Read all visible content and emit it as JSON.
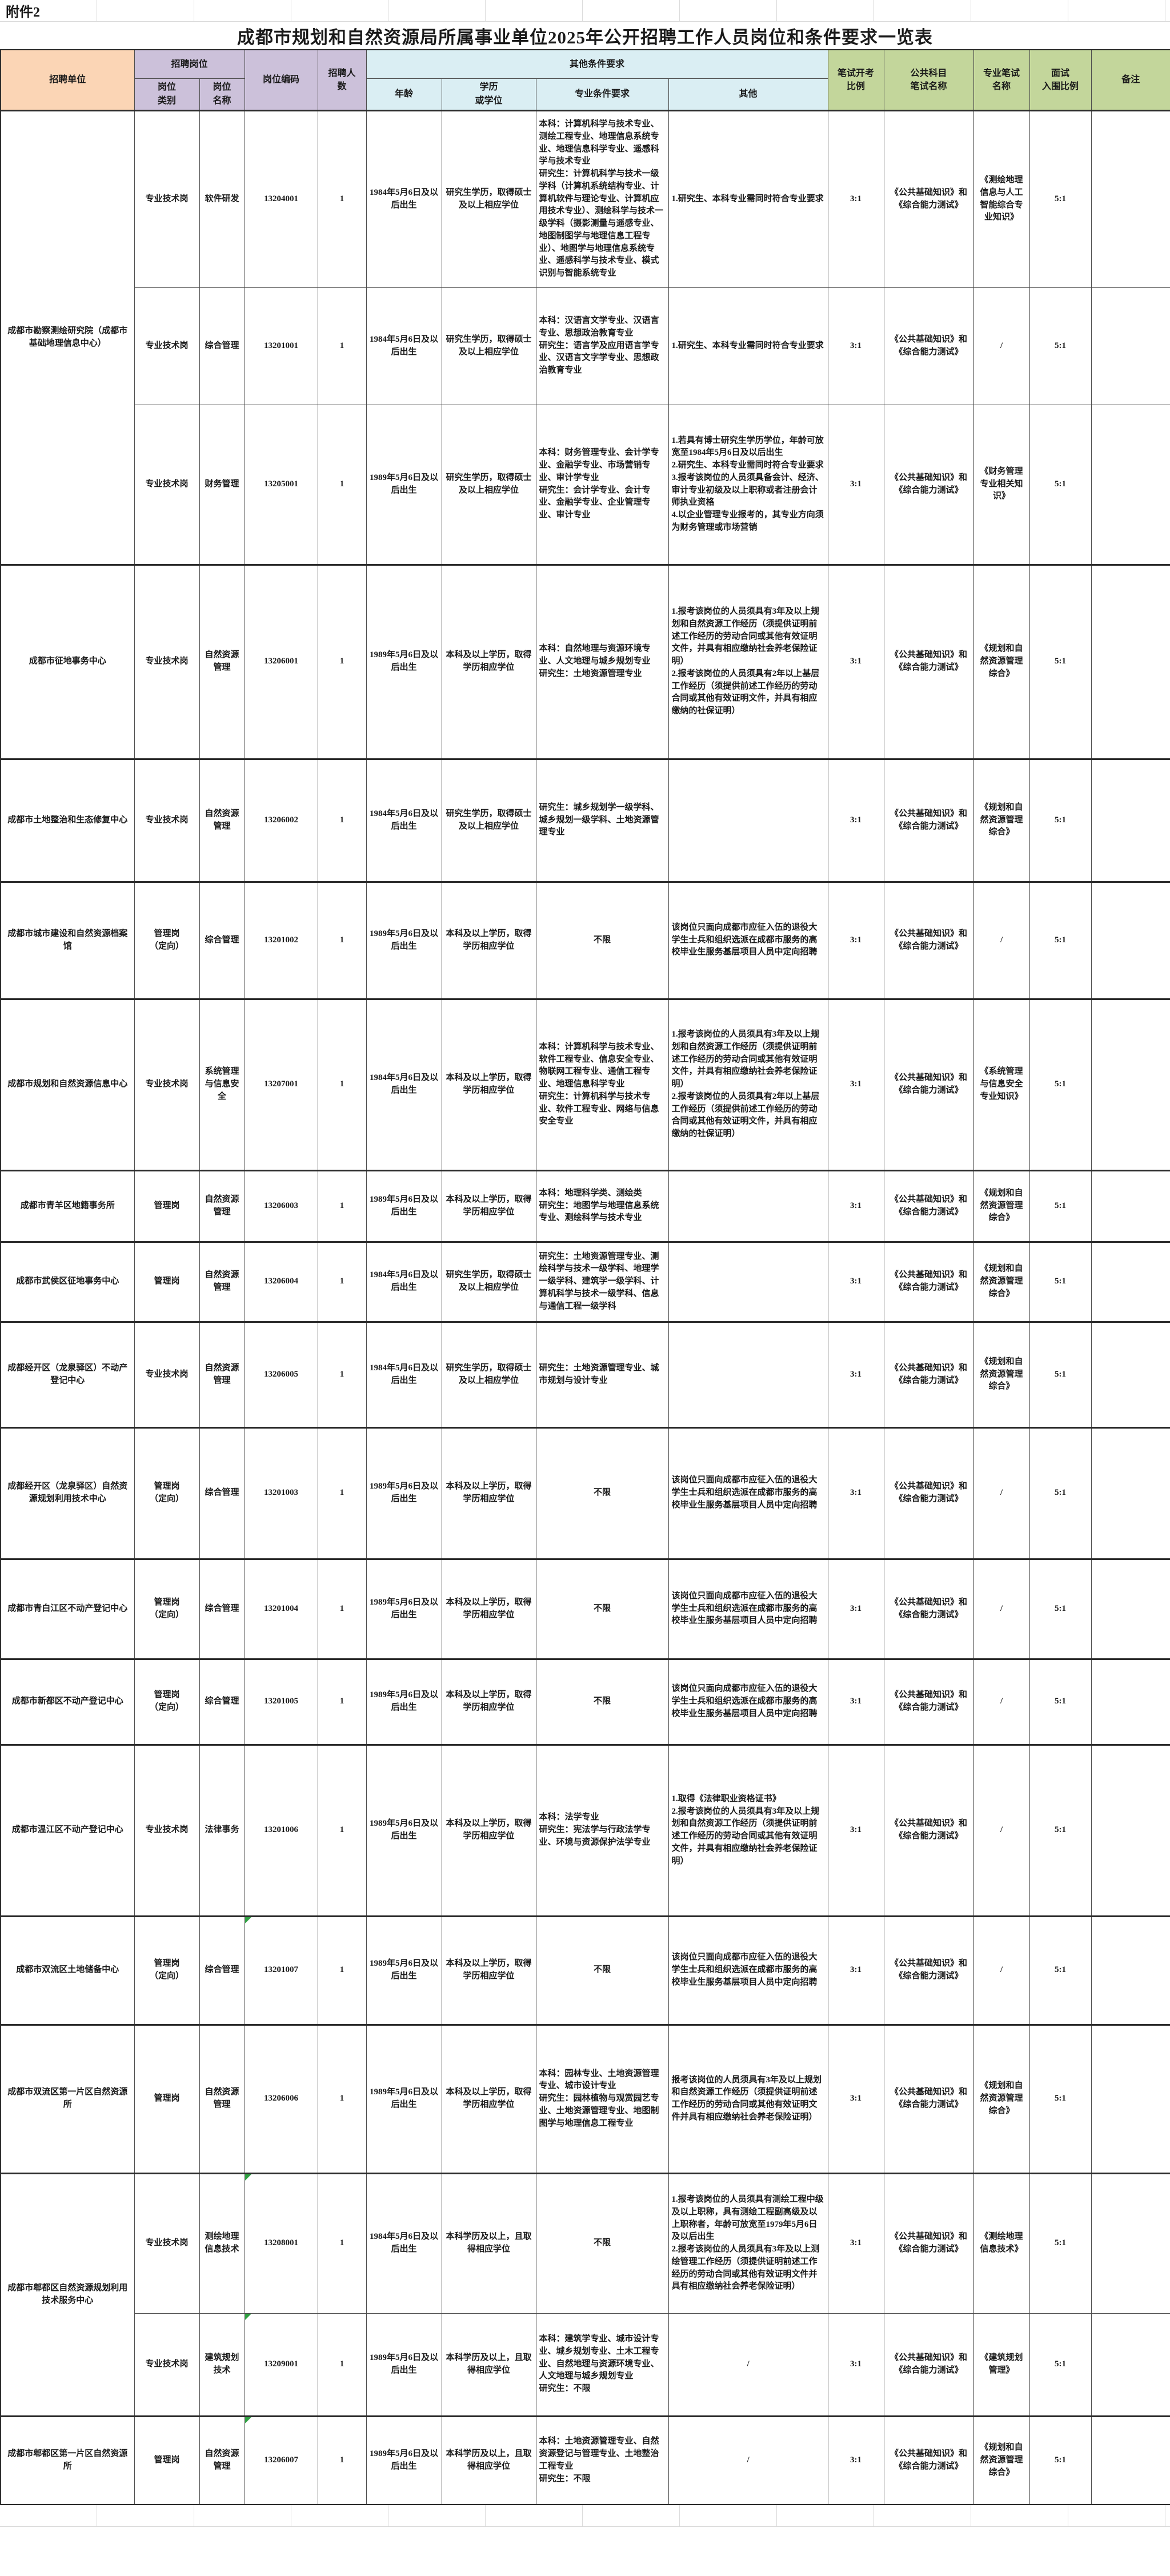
{
  "attachment_label": "附件2",
  "title": "成都市规划和自然资源局所属事业单位2025年公开招聘工作人员岗位和条件要求一览表",
  "columns": {
    "unit": "招聘单位",
    "job_group": "招聘岗位",
    "job_category": "岗位\n类别",
    "job_title": "岗位\n名称",
    "job_code": "岗位编码",
    "headcount": "招聘人\n数",
    "other_req_group": "其他条件要求",
    "age": "年龄",
    "education": "学历\n或学位",
    "major": "专业条件要求",
    "other": "其他",
    "written_ratio": "笔试开考\n比例",
    "public_written": "公共科目\n笔试名称",
    "professional_written": "专业笔试\n名称",
    "interview_ratio": "面试\n入围比例",
    "remark": "备注"
  },
  "rows": [
    {
      "unit": "成都市勘察测绘研究院（成都市基础地理信息中心）",
      "unit_rowspan": 3,
      "group_start": true,
      "code_marker": false,
      "category": "专业技术岗",
      "title": "软件研发",
      "code": "13204001",
      "count": "1",
      "age": "1984年5月6日及以后出生",
      "education": "研究生学历，取得硕士及以上相应学位",
      "major": "本科：计算机科学与技术专业、测绘工程专业、地理信息系统专业、地理信息科学专业、遥感科学与技术专业\n研究生：计算机科学与技术一级学科（计算机系统结构专业、计算机软件与理论专业、计算机应用技术专业）、测绘科学与技术一级学科（摄影测量与遥感专业、地图制图学与地理信息工程专业）、地图学与地理信息系统专业、遥感科学与技术专业、模式识别与智能系统专业",
      "other": "1.研究生、本科专业需同时符合专业要求",
      "written_ratio": "3:1",
      "public_written": "《公共基础知识》和《综合能力测试》",
      "professional_written": "《测绘地理信息与人工智能综合专业知识》",
      "interview_ratio": "5:1",
      "remark": ""
    },
    {
      "unit": null,
      "group_start": false,
      "code_marker": false,
      "category": "专业技术岗",
      "title": "综合管理",
      "code": "13201001",
      "count": "1",
      "age": "1984年5月6日及以后出生",
      "education": "研究生学历，取得硕士及以上相应学位",
      "major": "本科：汉语言文学专业、汉语言专业、思想政治教育专业\n研究生：语言学及应用语言学专业、汉语言文字学专业、思想政治教育专业",
      "other": "1.研究生、本科专业需同时符合专业要求",
      "written_ratio": "3:1",
      "public_written": "《公共基础知识》和《综合能力测试》",
      "professional_written": "/",
      "interview_ratio": "5:1",
      "remark": ""
    },
    {
      "unit": null,
      "group_start": false,
      "code_marker": false,
      "category": "专业技术岗",
      "title": "财务管理",
      "code": "13205001",
      "count": "1",
      "age": "1989年5月6日及以后出生",
      "education": "研究生学历，取得硕士及以上相应学位",
      "major": "本科：财务管理专业、会计学专业、金融学专业、市场营销专业、审计学专业\n研究生：会计学专业、会计专业、金融学专业、企业管理专业、审计专业",
      "other": "1.若具有博士研究生学历学位，年龄可放宽至1984年5月6日及以后出生\n2.研究生、本科专业需同时符合专业要求\n3.报考该岗位的人员须具备会计、经济、审计专业初级及以上职称或者注册会计师执业资格\n4.以企业管理专业报考的，其专业方向须为财务管理或市场营销",
      "written_ratio": "3:1",
      "public_written": "《公共基础知识》和《综合能力测试》",
      "professional_written": "《财务管理专业相关知识》",
      "interview_ratio": "5:1",
      "remark": ""
    },
    {
      "unit": "成都市征地事务中心",
      "group_start": true,
      "code_marker": false,
      "category": "专业技术岗",
      "title": "自然资源管理",
      "code": "13206001",
      "count": "1",
      "age": "1989年5月6日及以后出生",
      "education": "本科及以上学历，取得学历相应学位",
      "major": "本科：自然地理与资源环境专业、人文地理与城乡规划专业\n研究生：土地资源管理专业",
      "other": "1.报考该岗位的人员须具有3年及以上规划和自然资源工作经历（须提供证明前述工作经历的劳动合同或其他有效证明文件，并具有相应缴纳社会养老保险证明）\n2.报考该岗位的人员须具有2年以上基层工作经历（须提供前述工作经历的劳动合同或其他有效证明文件，并具有相应缴纳的社保证明）",
      "written_ratio": "3:1",
      "public_written": "《公共基础知识》和《综合能力测试》",
      "professional_written": "《规划和自然资源管理综合》",
      "interview_ratio": "5:1",
      "remark": ""
    },
    {
      "unit": "成都市土地整治和生态修复中心",
      "group_start": true,
      "code_marker": false,
      "category": "专业技术岗",
      "title": "自然资源管理",
      "code": "13206002",
      "count": "1",
      "age": "1984年5月6日及以后出生",
      "education": "研究生学历，取得硕士及以上相应学位",
      "major": "研究生：城乡规划学一级学科、城乡规划一级学科、土地资源管理专业",
      "other": "",
      "written_ratio": "3:1",
      "public_written": "《公共基础知识》和《综合能力测试》",
      "professional_written": "《规划和自然资源管理综合》",
      "interview_ratio": "5:1",
      "remark": ""
    },
    {
      "unit": "成都市城市建设和自然资源档案馆",
      "group_start": true,
      "code_marker": false,
      "category": "管理岗\n（定向）",
      "title": "综合管理",
      "code": "13201002",
      "count": "1",
      "age": "1989年5月6日及以后出生",
      "education": "本科及以上学历，取得学历相应学位",
      "major": "不限",
      "other": "该岗位只面向成都市应征入伍的退役大学生士兵和组织选派在成都市服务的高校毕业生服务基层项目人员中定向招聘",
      "written_ratio": "3:1",
      "public_written": "《公共基础知识》和《综合能力测试》",
      "professional_written": "/",
      "interview_ratio": "5:1",
      "remark": ""
    },
    {
      "unit": "成都市规划和自然资源信息中心",
      "group_start": true,
      "code_marker": false,
      "category": "专业技术岗",
      "title": "系统管理与信息安全",
      "code": "13207001",
      "count": "1",
      "age": "1984年5月6日及以后出生",
      "education": "本科及以上学历，取得学历相应学位",
      "major": "本科：计算机科学与技术专业、软件工程专业、信息安全专业、物联网工程专业、通信工程专业、地理信息科学专业\n研究生：计算机科学与技术专业、软件工程专业、网络与信息安全专业",
      "other": "1.报考该岗位的人员须具有3年及以上规划和自然资源工作经历（须提供证明前述工作经历的劳动合同或其他有效证明文件，并具有相应缴纳社会养老保险证明）\n2.报考该岗位的人员须具有2年以上基层工作经历（须提供前述工作经历的劳动合同或其他有效证明文件，并具有相应缴纳的社保证明）",
      "written_ratio": "3:1",
      "public_written": "《公共基础知识》和《综合能力测试》",
      "professional_written": "《系统管理与信息安全专业知识》",
      "interview_ratio": "5:1",
      "remark": ""
    },
    {
      "unit": "成都市青羊区地籍事务所",
      "group_start": true,
      "code_marker": false,
      "category": "管理岗",
      "title": "自然资源管理",
      "code": "13206003",
      "count": "1",
      "age": "1989年5月6日及以后出生",
      "education": "本科及以上学历，取得学历相应学位",
      "major": "本科：地理科学类、测绘类\n研究生：地图学与地理信息系统专业、测绘科学与技术专业",
      "other": "",
      "written_ratio": "3:1",
      "public_written": "《公共基础知识》和《综合能力测试》",
      "professional_written": "《规划和自然资源管理综合》",
      "interview_ratio": "5:1",
      "remark": ""
    },
    {
      "unit": "成都市武侯区征地事务中心",
      "group_start": true,
      "code_marker": false,
      "category": "管理岗",
      "title": "自然资源管理",
      "code": "13206004",
      "count": "1",
      "age": "1984年5月6日及以后出生",
      "education": "研究生学历，取得硕士及以上相应学位",
      "major": "研究生：土地资源管理专业、测绘科学与技术一级学科、地理学一级学科、建筑学一级学科、计算机科学与技术一级学科、信息与通信工程一级学科",
      "other": "",
      "written_ratio": "3:1",
      "public_written": "《公共基础知识》和《综合能力测试》",
      "professional_written": "《规划和自然资源管理综合》",
      "interview_ratio": "5:1",
      "remark": ""
    },
    {
      "unit": "成都经开区（龙泉驿区）不动产登记中心",
      "group_start": true,
      "code_marker": false,
      "category": "专业技术岗",
      "title": "自然资源管理",
      "code": "13206005",
      "count": "1",
      "age": "1984年5月6日及以后出生",
      "education": "研究生学历，取得硕士及以上相应学位",
      "major": "研究生：土地资源管理专业、城市规划与设计专业",
      "other": "",
      "written_ratio": "3:1",
      "public_written": "《公共基础知识》和《综合能力测试》",
      "professional_written": "《规划和自然资源管理综合》",
      "interview_ratio": "5:1",
      "remark": ""
    },
    {
      "unit": "成都经开区（龙泉驿区）自然资源规划利用技术中心",
      "group_start": true,
      "code_marker": false,
      "category": "管理岗\n（定向）",
      "title": "综合管理",
      "code": "13201003",
      "count": "1",
      "age": "1989年5月6日及以后出生",
      "education": "本科及以上学历，取得学历相应学位",
      "major": "不限",
      "other": "该岗位只面向成都市应征入伍的退役大学生士兵和组织选派在成都市服务的高校毕业生服务基层项目人员中定向招聘",
      "written_ratio": "3:1",
      "public_written": "《公共基础知识》和《综合能力测试》",
      "professional_written": "/",
      "interview_ratio": "5:1",
      "remark": ""
    },
    {
      "unit": "成都市青白江区不动产登记中心",
      "group_start": true,
      "code_marker": false,
      "category": "管理岗\n（定向）",
      "title": "综合管理",
      "code": "13201004",
      "count": "1",
      "age": "1989年5月6日及以后出生",
      "education": "本科及以上学历，取得学历相应学位",
      "major": "不限",
      "other": "该岗位只面向成都市应征入伍的退役大学生士兵和组织选派在成都市服务的高校毕业生服务基层项目人员中定向招聘",
      "written_ratio": "3:1",
      "public_written": "《公共基础知识》和《综合能力测试》",
      "professional_written": "/",
      "interview_ratio": "5:1",
      "remark": ""
    },
    {
      "unit": "成都市新都区不动产登记中心",
      "group_start": true,
      "code_marker": false,
      "category": "管理岗\n（定向）",
      "title": "综合管理",
      "code": "13201005",
      "count": "1",
      "age": "1989年5月6日及以后出生",
      "education": "本科及以上学历，取得学历相应学位",
      "major": "不限",
      "other": "该岗位只面向成都市应征入伍的退役大学生士兵和组织选派在成都市服务的高校毕业生服务基层项目人员中定向招聘",
      "written_ratio": "3:1",
      "public_written": "《公共基础知识》和《综合能力测试》",
      "professional_written": "/",
      "interview_ratio": "5:1",
      "remark": ""
    },
    {
      "unit": "成都市温江区不动产登记中心",
      "group_start": true,
      "code_marker": false,
      "category": "专业技术岗",
      "title": "法律事务",
      "code": "13201006",
      "count": "1",
      "age": "1989年5月6日及以后出生",
      "education": "本科及以上学历，取得学历相应学位",
      "major": "本科：法学专业\n研究生：宪法学与行政法学专业、环境与资源保护法学专业",
      "other": "1.取得《法律职业资格证书》\n2.报考该岗位的人员须具有3年及以上规划和自然资源工作经历（须提供证明前述工作经历的劳动合同或其他有效证明文件，并具有相应缴纳社会养老保险证明）",
      "written_ratio": "3:1",
      "public_written": "《公共基础知识》和《综合能力测试》",
      "professional_written": "/",
      "interview_ratio": "5:1",
      "remark": ""
    },
    {
      "unit": "成都市双流区土地储备中心",
      "group_start": true,
      "code_marker": true,
      "category": "管理岗\n（定向）",
      "title": "综合管理",
      "code": "13201007",
      "count": "1",
      "age": "1989年5月6日及以后出生",
      "education": "本科及以上学历，取得学历相应学位",
      "major": "不限",
      "other": "该岗位只面向成都市应征入伍的退役大学生士兵和组织选派在成都市服务的高校毕业生服务基层项目人员中定向招聘",
      "written_ratio": "3:1",
      "public_written": "《公共基础知识》和《综合能力测试》",
      "professional_written": "/",
      "interview_ratio": "5:1",
      "remark": ""
    },
    {
      "unit": "成都市双流区第一片区自然资源所",
      "group_start": true,
      "code_marker": false,
      "category": "管理岗",
      "title": "自然资源管理",
      "code": "13206006",
      "count": "1",
      "age": "1989年5月6日及以后出生",
      "education": "本科及以上学历，取得学历相应学位",
      "major": "本科：园林专业、土地资源管理专业、城市设计专业\n研究生：园林植物与观赏园艺专业、土地资源管理专业、地图制图学与地理信息工程专业",
      "other": "报考该岗位的人员须具有3年及以上规划和自然资源工作经历（须提供证明前述工作经历的劳动合同或其他有效证明文件并具有相应缴纳社会养老保险证明）",
      "written_ratio": "3:1",
      "public_written": "《公共基础知识》和《综合能力测试》",
      "professional_written": "《规划和自然资源管理综合》",
      "interview_ratio": "5:1",
      "remark": ""
    },
    {
      "unit": "成都市郫都区自然资源规划利用技术服务中心",
      "unit_rowspan": 2,
      "group_start": true,
      "code_marker": true,
      "category": "专业技术岗",
      "title": "测绘地理信息技术",
      "code": "13208001",
      "count": "1",
      "age": "1984年5月6日及以后出生",
      "education": "本科学历及以上，且取得相应学位",
      "major": "不限",
      "other": "1.报考该岗位的人员须具有测绘工程中级及以上职称，具有测绘工程副高级及以上职称者，年龄可放宽至1979年5月6日及以后出生\n2.报考该岗位的人员须具有3年及以上测绘管理工作经历（须提供证明前述工作经历的劳动合同或其他有效证明文件并具有相应缴纳社会养老保险证明）",
      "written_ratio": "3:1",
      "public_written": "《公共基础知识》和《综合能力测试》",
      "professional_written": "《测绘地理信息技术》",
      "interview_ratio": "5:1",
      "remark": ""
    },
    {
      "unit": null,
      "group_start": false,
      "code_marker": true,
      "category": "专业技术岗",
      "title": "建筑规划技术",
      "code": "13209001",
      "count": "1",
      "age": "1989年5月6日及以后出生",
      "education": "本科学历及以上，且取得相应学位",
      "major": "本科：建筑学专业、城市设计专业、城乡规划专业、土木工程专业、自然地理与资源环境专业、人文地理与城乡规划专业\n研究生：不限",
      "other": "/",
      "written_ratio": "3:1",
      "public_written": "《公共基础知识》和《综合能力测试》",
      "professional_written": "《建筑规划管理》",
      "interview_ratio": "5:1",
      "remark": ""
    },
    {
      "unit": "成都市郫都区第一片区自然资源所",
      "group_start": true,
      "code_marker": true,
      "category": "管理岗",
      "title": "自然资源管理",
      "code": "13206007",
      "count": "1",
      "age": "1989年5月6日及以后出生",
      "education": "本科学历及以上，且取得相应学位",
      "major": "本科：土地资源管理专业、自然资源登记与管理专业、土地整治工程专业\n研究生：不限",
      "other": "/",
      "written_ratio": "3:1",
      "public_written": "《公共基础知识》和《综合能力测试》",
      "professional_written": "《规划和自然资源管理综合》",
      "interview_ratio": "5:1",
      "remark": ""
    }
  ]
}
